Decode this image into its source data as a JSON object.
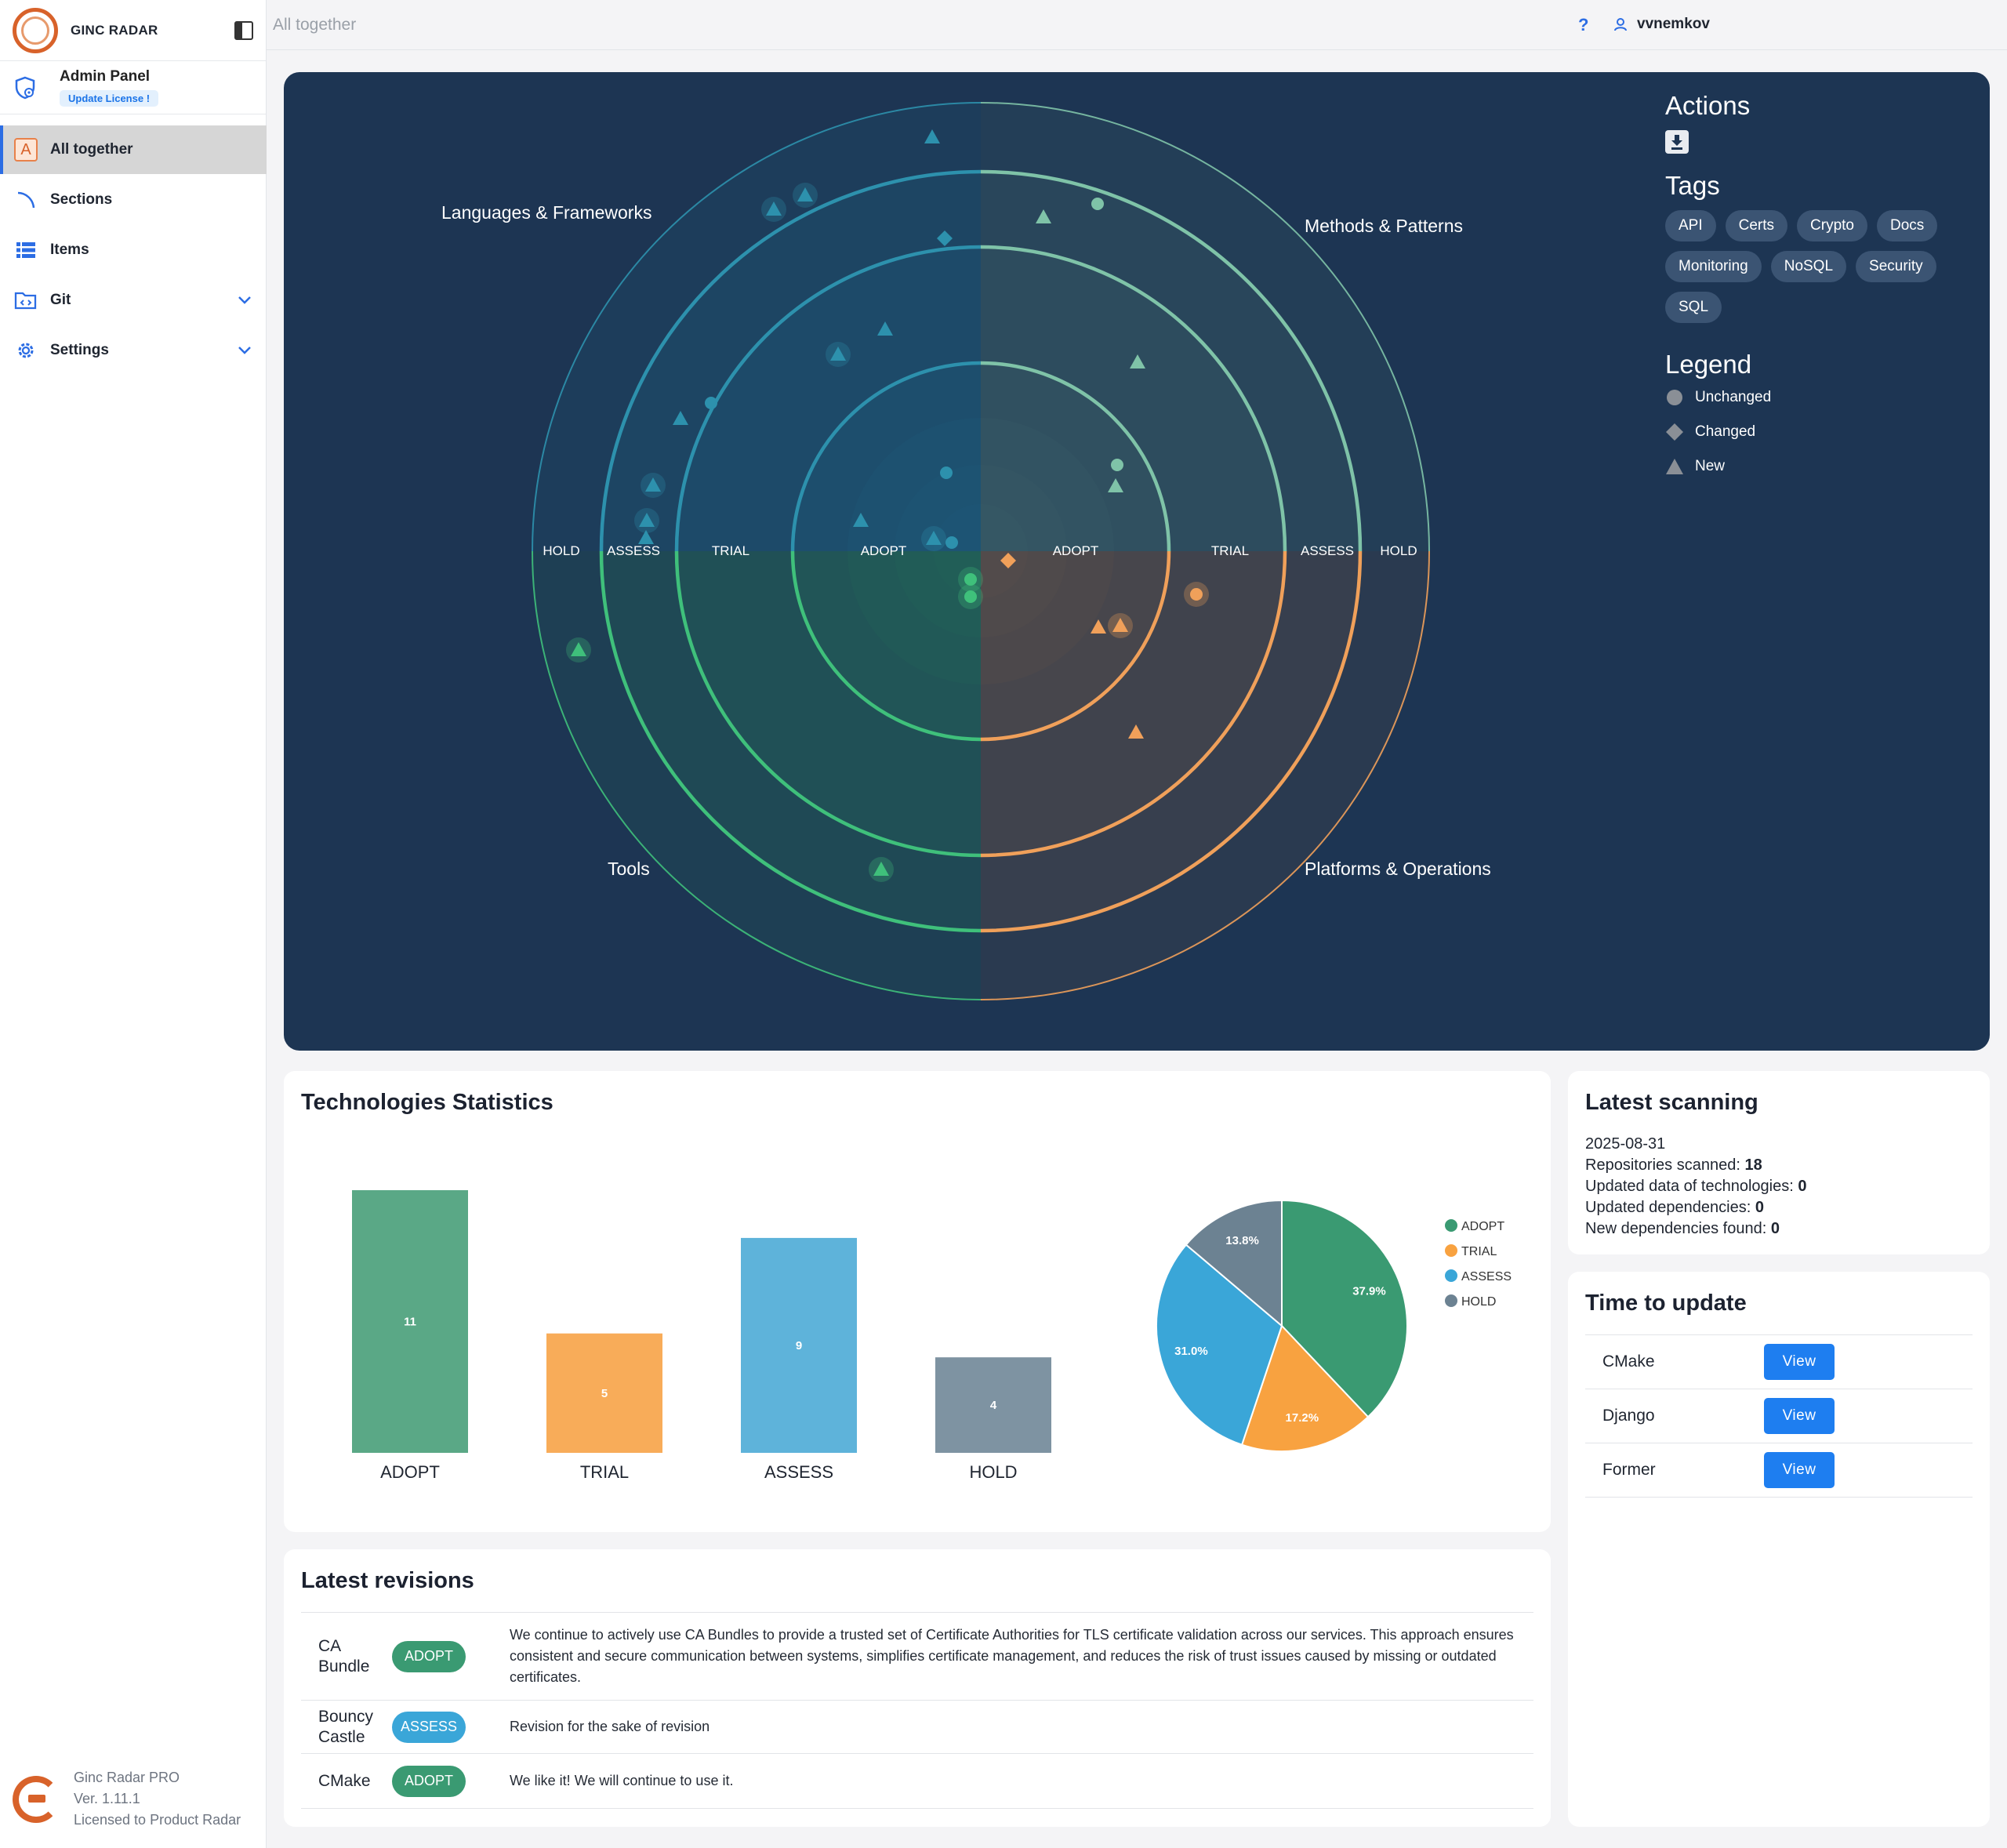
{
  "brand": {
    "name": "GINC RADAR",
    "icon": "ginc-radar-logo"
  },
  "admin": {
    "title": "Admin Panel",
    "badge": "Update License !"
  },
  "nav": [
    {
      "label": "All together",
      "icon": "letter-a-icon",
      "active": true
    },
    {
      "label": "Sections",
      "icon": "arc-icon"
    },
    {
      "label": "Items",
      "icon": "list-icon"
    },
    {
      "label": "Git",
      "icon": "git-folder-icon",
      "expandable": true
    },
    {
      "label": "Settings",
      "icon": "gear-icon",
      "expandable": true
    }
  ],
  "nav_letter": "A",
  "footer": {
    "product": "Ginc Radar PRO",
    "version": "Ver. 1.11.1",
    "license": "Licensed to Product Radar"
  },
  "topbar": {
    "breadcrumb": "All together",
    "help": "?",
    "user": "vvnemkov"
  },
  "radar": {
    "quadrants": {
      "top_left": "Languages & Frameworks",
      "top_right": "Methods & Patterns",
      "bottom_left": "Tools",
      "bottom_right": "Platforms & Operations"
    },
    "rings_left": [
      "HOLD",
      "ASSESS",
      "TRIAL",
      "ADOPT"
    ],
    "rings_right": [
      "ADOPT",
      "TRIAL",
      "ASSESS",
      "HOLD"
    ],
    "colors": {
      "top_left": "#2d91ad",
      "top_right": "#7fc3a8",
      "bottom_left": "#3fc07b",
      "bottom_right": "#f0a05a"
    }
  },
  "side": {
    "actions_title": "Actions",
    "download_icon": "download-icon",
    "tags_title": "Tags",
    "tags": [
      "API",
      "Certs",
      "Crypto",
      "Docs",
      "Monitoring",
      "NoSQL",
      "Security",
      "SQL"
    ],
    "legend_title": "Legend",
    "legend": [
      "Unchanged",
      "Changed",
      "New"
    ]
  },
  "stats": {
    "title": "Technologies Statistics",
    "chart_data": [
      {
        "type": "bar",
        "categories": [
          "ADOPT",
          "TRIAL",
          "ASSESS",
          "HOLD"
        ],
        "values": [
          11,
          5,
          9,
          4
        ],
        "colors": [
          "#5aa886",
          "#f8ac59",
          "#5eb3da",
          "#7e93a2"
        ],
        "ylim": [
          0,
          11
        ]
      },
      {
        "type": "pie",
        "labels": [
          "ADOPT",
          "TRIAL",
          "ASSESS",
          "HOLD"
        ],
        "values": [
          37.9,
          17.2,
          31.0,
          13.8
        ],
        "data_labels": [
          "37.9%",
          "17.2%",
          "31.0%",
          "13.8%"
        ],
        "colors": [
          "#3a9a72",
          "#f8a240",
          "#3aa6d8",
          "#6c8292"
        ],
        "legend": "right"
      }
    ]
  },
  "scan": {
    "title": "Latest scanning",
    "date": "2025-08-31",
    "rows": [
      {
        "label": "Repositories scanned: ",
        "value": "18"
      },
      {
        "label": "Updated data of technologies: ",
        "value": "0"
      },
      {
        "label": "Updated dependencies: ",
        "value": "0"
      },
      {
        "label": "New dependencies found: ",
        "value": "0"
      }
    ]
  },
  "ttu": {
    "title": "Time to update",
    "rows": [
      {
        "name": "CMake",
        "button": "View"
      },
      {
        "name": "Django",
        "button": "View"
      },
      {
        "name": "Former",
        "button": "View"
      }
    ]
  },
  "revisions": {
    "title": "Latest revisions",
    "rows": [
      {
        "name": "CA Bundle",
        "ring": "ADOPT",
        "color": "#3a9a72",
        "text": "We continue to actively use CA Bundles to provide a trusted set of Certificate Authorities for TLS certificate validation across our services. This approach ensures consistent and secure communication between systems, simplifies certificate management, and reduces the risk of trust issues caused by missing or outdated certificates."
      },
      {
        "name": "Bouncy Castle",
        "ring": "ASSESS",
        "color": "#3aa6d8",
        "text": "Revision for the sake of revision"
      },
      {
        "name": "CMake",
        "ring": "ADOPT",
        "color": "#3a9a72",
        "text": "We like it! We will continue to use it."
      }
    ]
  }
}
